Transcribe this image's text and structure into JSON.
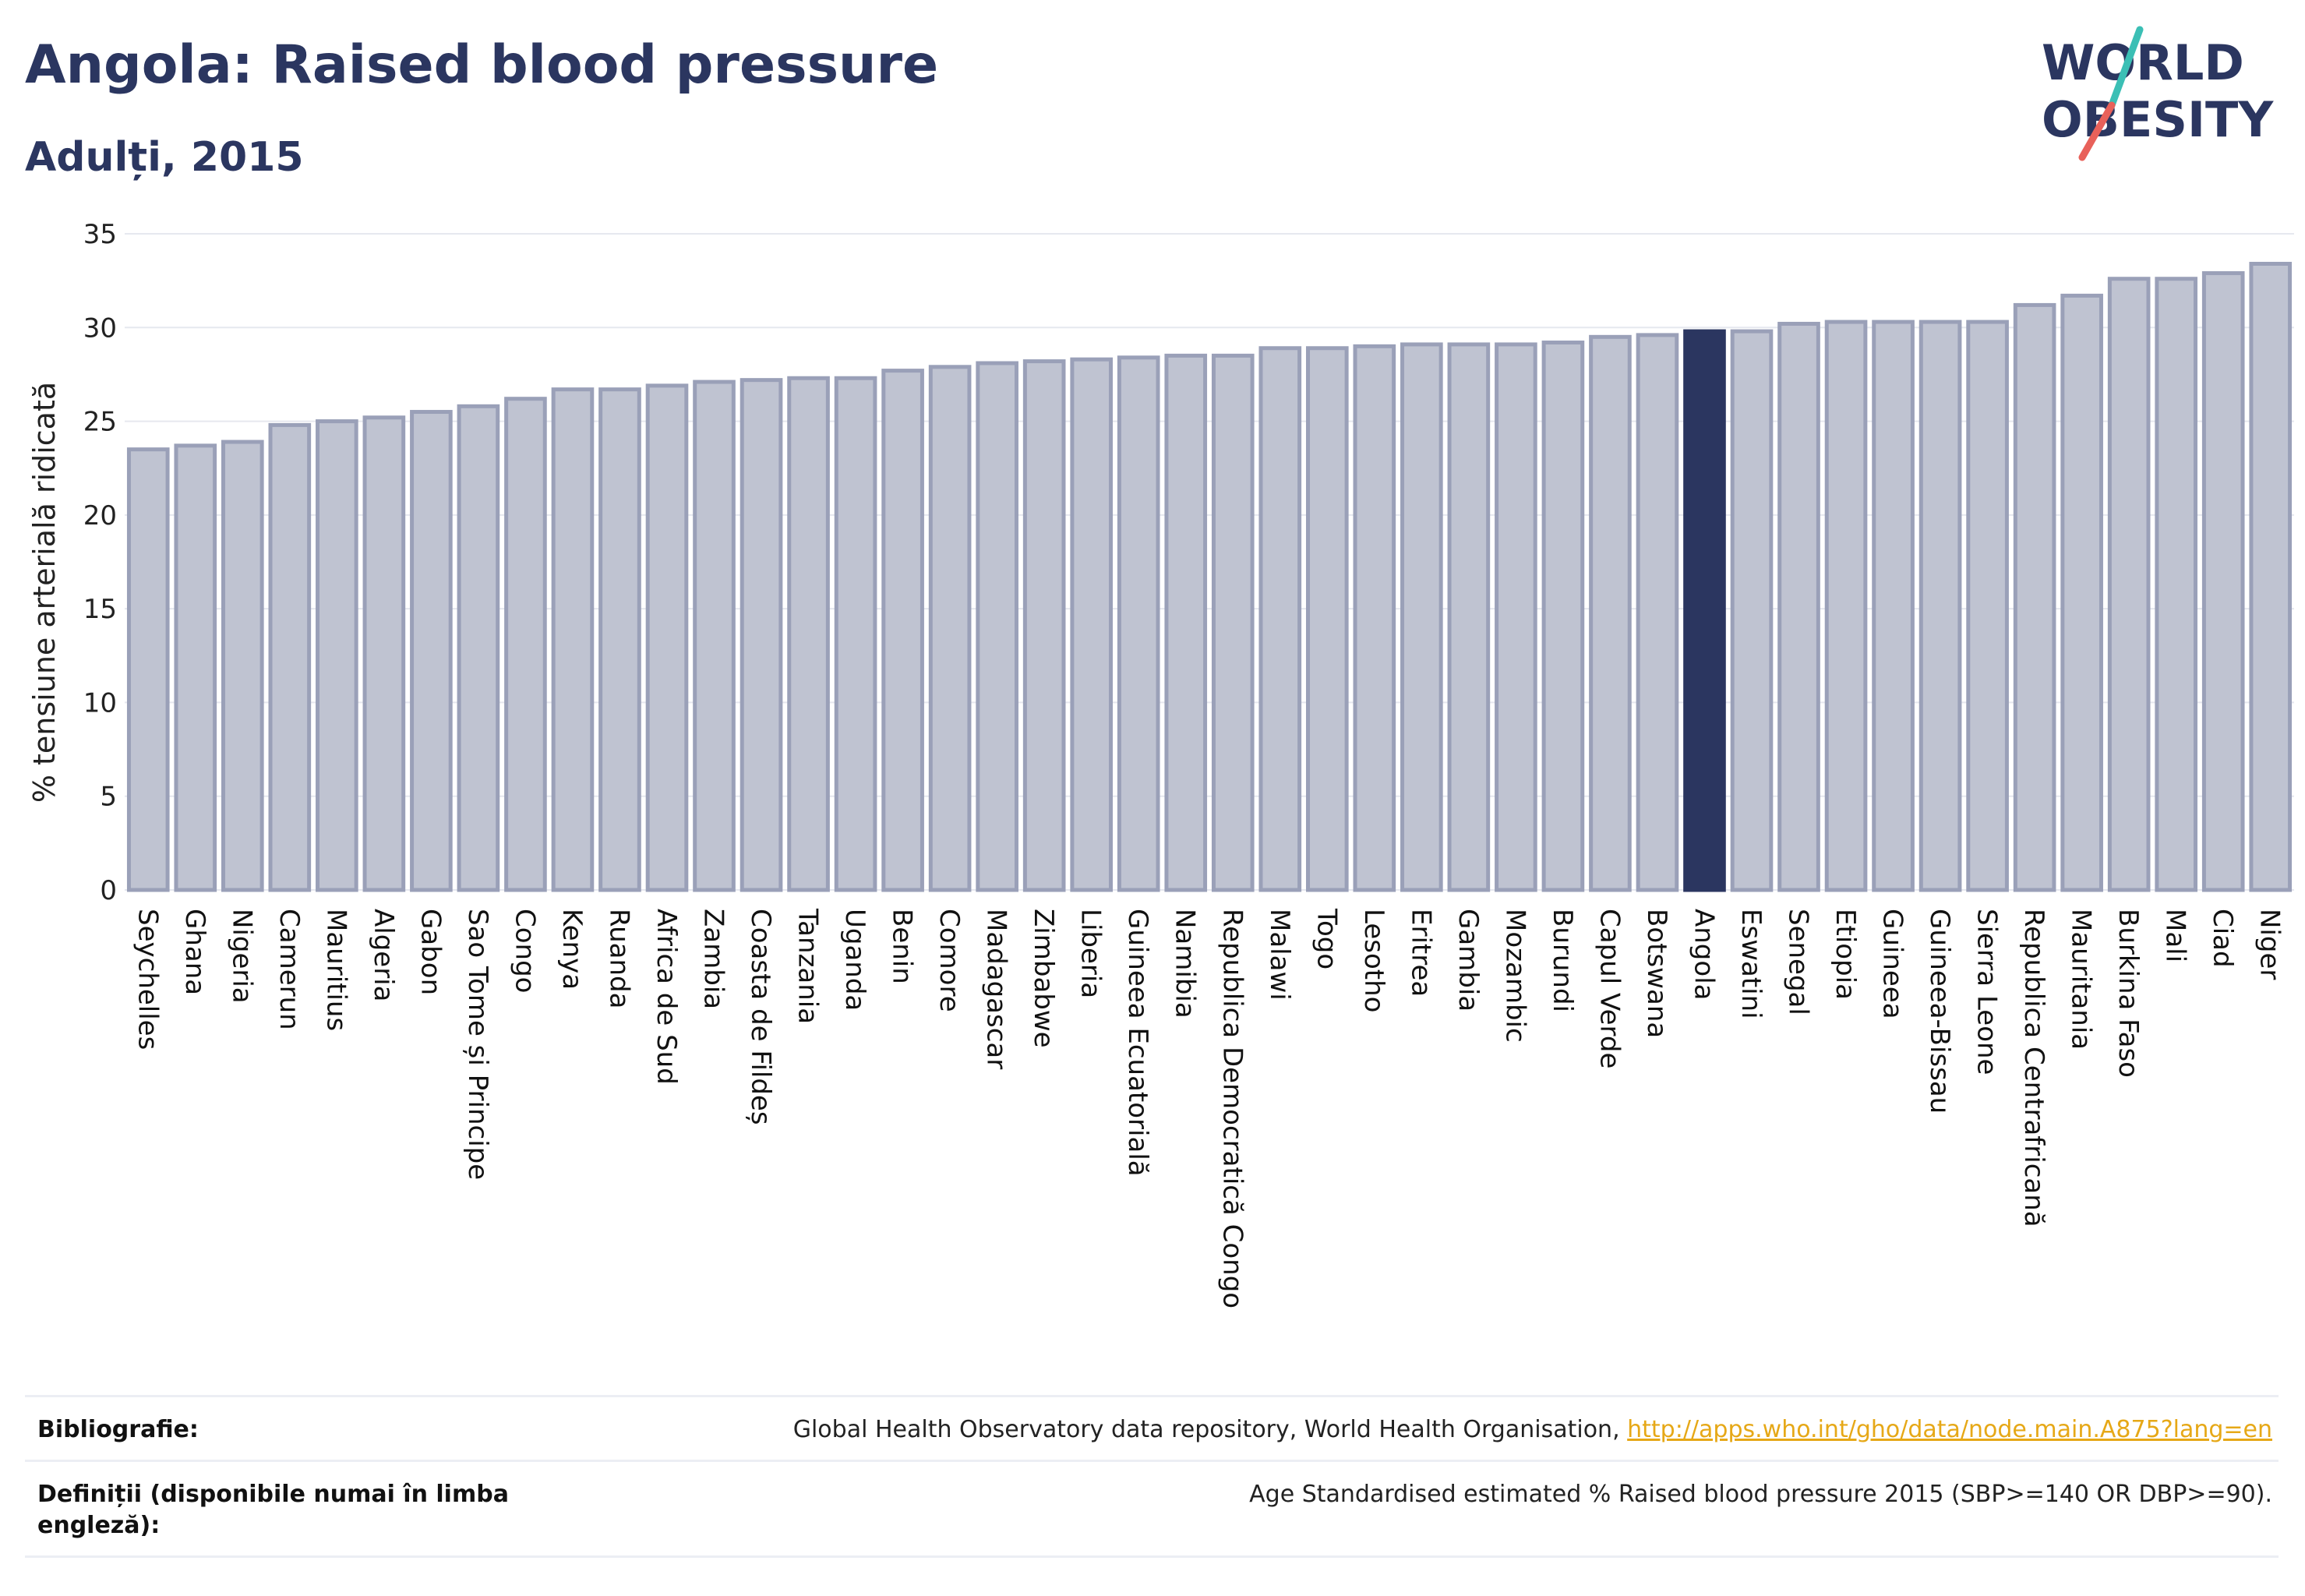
{
  "header": {
    "title": "Angola: Raised blood pressure",
    "subtitle": "Adulți, 2015"
  },
  "logo": {
    "line1": "WORLD",
    "line2": "OBESITY",
    "colors": {
      "text": "#2b3660",
      "slash_teal": "#3bbfb5",
      "slash_red": "#e8615a"
    }
  },
  "chart_data": {
    "type": "bar",
    "ylabel": "% tensiune arterială ridicată",
    "ylim": [
      0,
      35
    ],
    "yticks": [
      0,
      5,
      10,
      15,
      20,
      25,
      30,
      35
    ],
    "grid": true,
    "highlight": "Angola",
    "colors": {
      "bar": "#bfc3d1",
      "bar_border": "#9aa0b8",
      "highlight": "#2b3660"
    },
    "categories": [
      "Seychelles",
      "Ghana",
      "Nigeria",
      "Camerun",
      "Mauritius",
      "Algeria",
      "Gabon",
      "Sao Tome și Principe",
      "Congo",
      "Kenya",
      "Ruanda",
      "Africa de Sud",
      "Zambia",
      "Coasta de Fildeș",
      "Tanzania",
      "Uganda",
      "Benin",
      "Comore",
      "Madagascar",
      "Zimbabwe",
      "Liberia",
      "Guineea Ecuatorială",
      "Namibia",
      "Republica Democratică Congo",
      "Malawi",
      "Togo",
      "Lesotho",
      "Eritrea",
      "Gambia",
      "Mozambic",
      "Burundi",
      "Capul Verde",
      "Botswana",
      "Angola",
      "Eswatini",
      "Senegal",
      "Etiopia",
      "Guineea",
      "Guineea-Bissau",
      "Sierra Leone",
      "Republica Centrafricană",
      "Mauritania",
      "Burkina Faso",
      "Mali",
      "Ciad",
      "Niger"
    ],
    "values": [
      23.5,
      23.7,
      23.9,
      24.8,
      25.0,
      25.2,
      25.5,
      25.8,
      26.2,
      26.7,
      26.7,
      26.9,
      27.1,
      27.2,
      27.3,
      27.3,
      27.7,
      27.9,
      28.1,
      28.2,
      28.3,
      28.4,
      28.5,
      28.5,
      28.9,
      28.9,
      29.0,
      29.1,
      29.1,
      29.1,
      29.2,
      29.5,
      29.6,
      29.8,
      29.8,
      30.2,
      30.3,
      30.3,
      30.3,
      30.3,
      31.2,
      31.7,
      32.6,
      32.6,
      32.9,
      33.4
    ]
  },
  "footer": {
    "bibliography_label": "Bibliografie:",
    "bibliography_text": "Global Health Observatory data repository, World Health Organisation, ",
    "bibliography_link": "http://apps.who.int/gho/data/node.main.A875?lang=en",
    "definitions_label": "Definiții (disponibile numai în limba engleză):",
    "definitions_text": "Age Standardised estimated % Raised blood pressure 2015 (SBP>=140 OR DBP>=90)."
  }
}
